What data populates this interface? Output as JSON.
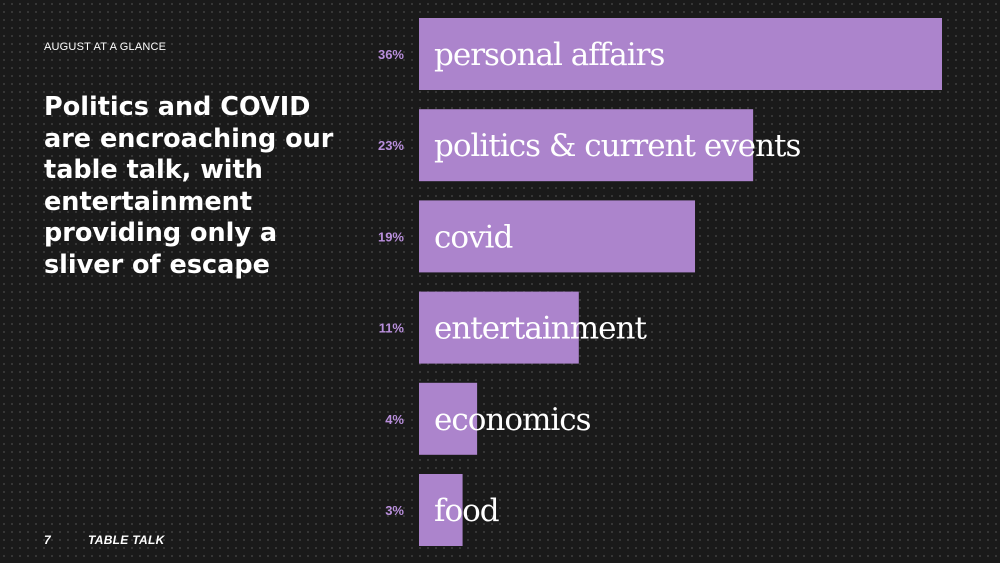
{
  "kicker": "AUGUST AT A GLANCE",
  "headline": "Politics and COVID are encroaching our table talk, with entertainment providing only a sliver of escape",
  "footer": {
    "page_number": "7",
    "brand": "TABLE TALK"
  },
  "colors": {
    "bar": "#ac84cc",
    "percent_label": "#b98fdc",
    "category_label": "#ffffff",
    "background": "#1a1a1a"
  },
  "chart_data": {
    "type": "bar",
    "orientation": "horizontal",
    "categories": [
      "personal affairs",
      "politics & current events",
      "covid",
      "entertainment",
      "economics",
      "food"
    ],
    "values": [
      36,
      23,
      19,
      11,
      4,
      3
    ],
    "value_labels": [
      "36%",
      "23%",
      "19%",
      "11%",
      "4%",
      "3%"
    ],
    "unit": "%",
    "grid": false,
    "legend": "none"
  }
}
